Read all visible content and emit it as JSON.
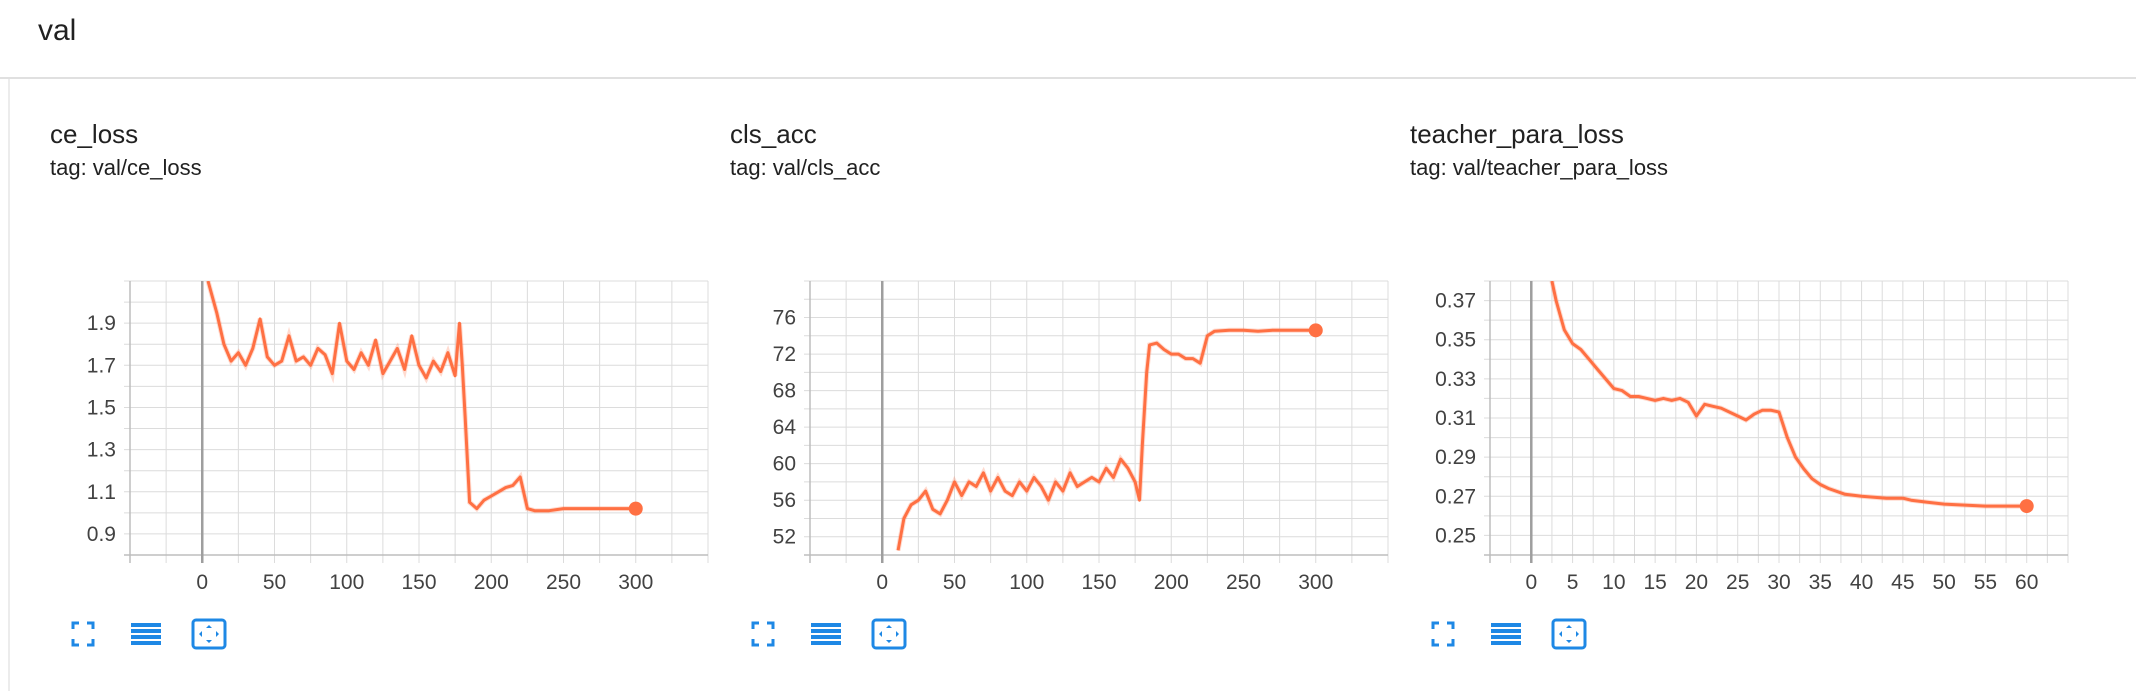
{
  "group": {
    "title": "val"
  },
  "accent": "#ff7043",
  "smoothed_opacity": 0.25,
  "buttons": [
    "fullscreen-icon",
    "data-table-icon",
    "fit-domain-icon"
  ],
  "chart_data": [
    {
      "type": "line",
      "title": "ce_loss",
      "tag": "tag: val/ce_loss",
      "xlim": [
        -50,
        350
      ],
      "ylim": [
        0.8,
        2.1
      ],
      "xticks": [
        0,
        50,
        100,
        150,
        200,
        250,
        300
      ],
      "xtick_labels": [
        "0",
        "50",
        "100",
        "150",
        "200",
        "250",
        "300"
      ],
      "yticks": [
        0.9,
        1.1,
        1.3,
        1.5,
        1.7,
        1.9
      ],
      "ytick_labels": [
        "0.9",
        "1.1",
        "1.3",
        "1.5",
        "1.7",
        "1.9"
      ],
      "grid": true,
      "series": [
        {
          "x": [
            4,
            10,
            15,
            20,
            25,
            30,
            35,
            40,
            45,
            50,
            55,
            60,
            65,
            70,
            75,
            80,
            85,
            90,
            95,
            100,
            105,
            110,
            115,
            120,
            125,
            130,
            135,
            140,
            145,
            150,
            155,
            160,
            165,
            170,
            175,
            178,
            180,
            182,
            185,
            190,
            195,
            200,
            205,
            210,
            215,
            220,
            225,
            230,
            240,
            250,
            260,
            270,
            280,
            290,
            300
          ],
          "y": [
            2.1,
            1.95,
            1.8,
            1.72,
            1.76,
            1.7,
            1.78,
            1.92,
            1.74,
            1.7,
            1.72,
            1.84,
            1.72,
            1.74,
            1.7,
            1.78,
            1.75,
            1.66,
            1.9,
            1.72,
            1.68,
            1.76,
            1.7,
            1.82,
            1.66,
            1.72,
            1.78,
            1.68,
            1.84,
            1.7,
            1.64,
            1.72,
            1.67,
            1.76,
            1.65,
            1.9,
            1.7,
            1.45,
            1.05,
            1.02,
            1.06,
            1.08,
            1.1,
            1.12,
            1.13,
            1.17,
            1.02,
            1.01,
            1.01,
            1.02,
            1.02,
            1.02,
            1.02,
            1.02,
            1.02
          ]
        }
      ],
      "end_point": [
        300,
        1.02
      ]
    },
    {
      "type": "line",
      "title": "cls_acc",
      "tag": "tag: val/cls_acc",
      "xlim": [
        -50,
        350
      ],
      "ylim": [
        50,
        80
      ],
      "xticks": [
        0,
        50,
        100,
        150,
        200,
        250,
        300
      ],
      "xtick_labels": [
        "0",
        "50",
        "100",
        "150",
        "200",
        "250",
        "300"
      ],
      "yticks": [
        52,
        56,
        60,
        64,
        68,
        72,
        76
      ],
      "ytick_labels": [
        "52",
        "56",
        "60",
        "64",
        "68",
        "72",
        "76"
      ],
      "grid": true,
      "series": [
        {
          "x": [
            11,
            15,
            20,
            25,
            30,
            35,
            40,
            45,
            50,
            55,
            60,
            65,
            70,
            75,
            80,
            85,
            90,
            95,
            100,
            105,
            110,
            115,
            120,
            125,
            130,
            135,
            140,
            145,
            150,
            155,
            160,
            165,
            170,
            175,
            178,
            180,
            183,
            185,
            190,
            195,
            200,
            205,
            210,
            215,
            220,
            225,
            230,
            240,
            250,
            260,
            270,
            280,
            290,
            300
          ],
          "y": [
            50.5,
            54,
            55.5,
            56,
            57,
            55,
            54.5,
            56,
            58,
            56.5,
            58,
            57.5,
            59,
            57,
            58.5,
            57,
            56.5,
            58,
            57,
            58.5,
            57.5,
            56,
            58,
            57,
            59,
            57.5,
            58,
            58.5,
            58,
            59.5,
            58.5,
            60.5,
            59.5,
            58,
            56,
            62,
            70,
            73,
            73.2,
            72.5,
            72,
            72,
            71.5,
            71.5,
            71,
            74,
            74.5,
            74.6,
            74.6,
            74.5,
            74.6,
            74.6,
            74.6,
            74.6
          ]
        }
      ],
      "end_point": [
        300,
        74.6
      ]
    },
    {
      "type": "line",
      "title": "teacher_para_loss",
      "tag": "tag: val/teacher_para_loss",
      "xlim": [
        -5,
        65
      ],
      "ylim": [
        0.24,
        0.38
      ],
      "xticks": [
        0,
        5,
        10,
        15,
        20,
        25,
        30,
        35,
        40,
        45,
        50,
        55,
        60
      ],
      "xtick_labels": [
        "0",
        "5",
        "10",
        "15",
        "20",
        "25",
        "30",
        "35",
        "40",
        "45",
        "50",
        "55",
        "60"
      ],
      "yticks": [
        0.25,
        0.27,
        0.29,
        0.31,
        0.33,
        0.35,
        0.37
      ],
      "ytick_labels": [
        "0.25",
        "0.27",
        "0.29",
        "0.31",
        "0.33",
        "0.35",
        "0.37"
      ],
      "grid": true,
      "series": [
        {
          "x": [
            2.5,
            3,
            4,
            5,
            6,
            7,
            8,
            9,
            10,
            11,
            12,
            13,
            14,
            15,
            16,
            17,
            18,
            19,
            20,
            21,
            22,
            23,
            24,
            25,
            26,
            27,
            28,
            29,
            30,
            31,
            32,
            33,
            34,
            35,
            36,
            38,
            40,
            43,
            45,
            46,
            48,
            50,
            55,
            60
          ],
          "y": [
            0.38,
            0.37,
            0.355,
            0.348,
            0.345,
            0.34,
            0.335,
            0.33,
            0.325,
            0.324,
            0.321,
            0.321,
            0.32,
            0.319,
            0.32,
            0.319,
            0.32,
            0.318,
            0.311,
            0.317,
            0.316,
            0.315,
            0.313,
            0.311,
            0.309,
            0.312,
            0.314,
            0.314,
            0.313,
            0.3,
            0.29,
            0.284,
            0.279,
            0.276,
            0.274,
            0.271,
            0.27,
            0.269,
            0.269,
            0.268,
            0.267,
            0.266,
            0.265,
            0.265
          ]
        }
      ],
      "end_point": [
        60,
        0.265
      ]
    }
  ]
}
